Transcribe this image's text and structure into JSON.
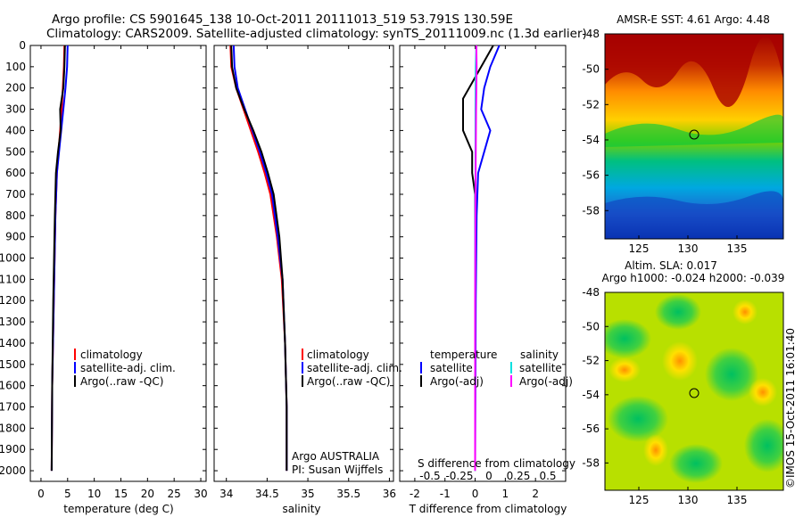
{
  "header": {
    "line1": "Argo profile: CS 5901645_138 10-Oct-2011 20111013_519 53.791S 130.59E",
    "line2": "Climatology: CARS2009. Satellite-adjusted climatology: synTS_20111009.nc (1.3d earlier)"
  },
  "colors": {
    "climatology": "#ff0000",
    "satellite": "#0000ff",
    "argo": "#000000",
    "satellite_salinity": "#00e0e0",
    "argo_salinity": "#ff00ff"
  },
  "depth_axis": {
    "range": [
      0,
      2050
    ],
    "ticks": [
      "0",
      "100",
      "200",
      "300",
      "400",
      "500",
      "600",
      "700",
      "800",
      "900",
      "1000",
      "1100",
      "1200",
      "1300",
      "1400",
      "1500",
      "1600",
      "1700",
      "1800",
      "1900",
      "2000"
    ]
  },
  "panel_temperature": {
    "xlabel": "temperature (deg C)",
    "xticks": [
      "0",
      "5",
      "10",
      "15",
      "20",
      "25",
      "30"
    ],
    "legend": [
      "climatology",
      "satellite-adj. clim.",
      "Argo(..raw -QC)"
    ]
  },
  "panel_salinity": {
    "xlabel": "salinity",
    "xticks": [
      "34",
      "34.5",
      "35",
      "35.5",
      "36"
    ],
    "legend": [
      "climatology",
      "satellite-adj. clim.",
      "Argo(..raw -QC)"
    ],
    "note1": "Argo AUSTRALIA",
    "note2": "PI: Susan Wijffels"
  },
  "panel_difference": {
    "xlabel": "T difference from climatology",
    "xticks": [
      "-2",
      "-1",
      "0",
      "1",
      "2"
    ],
    "top_label": "S difference from climatology",
    "top_ticks": [
      "-0.5",
      "-0.25",
      "0",
      "0.25",
      "0.5"
    ],
    "legend_t_title": "temperature",
    "legend_t": [
      "satellite",
      "Argo(-adj)"
    ],
    "legend_s_title": "salinity",
    "legend_s": [
      "satellite",
      "Argo(-adj)"
    ]
  },
  "map_sst": {
    "title": "AMSR-E SST: 4.61  Argo: 4.48",
    "yticks": [
      "-48",
      "-50",
      "-52",
      "-54",
      "-56",
      "-58"
    ],
    "xticks": [
      "125",
      "130",
      "135"
    ]
  },
  "map_sla": {
    "title1": "Altim. SLA: 0.017",
    "title2": "Argo h1000: -0.024 h2000: -0.039",
    "yticks": [
      "-48",
      "-50",
      "-52",
      "-54",
      "-56",
      "-58"
    ],
    "xticks": [
      "125",
      "130",
      "135"
    ]
  },
  "watermark": "©IMOS 15-Oct-2011 16:01:40",
  "chart_data": [
    {
      "type": "line",
      "xlabel": "temperature (deg C)",
      "ylabel": "",
      "xlim": [
        -2,
        31
      ],
      "ylim": [
        2050,
        0
      ],
      "series": [
        {
          "name": "climatology",
          "x": [
            4.4,
            4.3,
            4.1,
            3.9,
            3.6,
            3.3,
            3.0,
            2.7,
            2.4,
            2.1,
            2.0
          ],
          "y": [
            0,
            100,
            200,
            300,
            400,
            500,
            600,
            800,
            1200,
            1600,
            2000
          ]
        },
        {
          "name": "satellite-adj. clim.",
          "x": [
            5.0,
            4.9,
            4.6,
            4.2,
            3.8,
            3.4,
            3.0,
            2.7,
            2.4,
            2.1,
            2.0
          ],
          "y": [
            0,
            100,
            200,
            300,
            400,
            500,
            600,
            800,
            1200,
            1600,
            2000
          ]
        },
        {
          "name": "Argo(..raw -QC)",
          "x": [
            4.5,
            4.4,
            4.2,
            3.6,
            3.7,
            3.2,
            2.8,
            2.6,
            2.3,
            2.1,
            2.0
          ],
          "y": [
            0,
            100,
            200,
            300,
            400,
            500,
            600,
            800,
            1200,
            1600,
            2000
          ]
        }
      ]
    },
    {
      "type": "line",
      "xlabel": "salinity",
      "ylabel": "",
      "xlim": [
        33.85,
        36.05
      ],
      "ylim": [
        2050,
        0
      ],
      "series": [
        {
          "name": "climatology",
          "x": [
            34.05,
            34.06,
            34.12,
            34.21,
            34.3,
            34.39,
            34.47,
            34.54,
            34.62,
            34.68,
            34.72,
            34.74,
            34.74
          ],
          "y": [
            0,
            100,
            200,
            300,
            400,
            500,
            600,
            700,
            900,
            1100,
            1400,
            1700,
            2000
          ]
        },
        {
          "name": "satellite-adj. clim.",
          "x": [
            34.09,
            34.1,
            34.14,
            34.23,
            34.32,
            34.41,
            34.49,
            34.56,
            34.63,
            34.69,
            34.72,
            34.74,
            34.74
          ],
          "y": [
            0,
            100,
            200,
            300,
            400,
            500,
            600,
            700,
            900,
            1100,
            1400,
            1700,
            2000
          ]
        },
        {
          "name": "Argo(..raw -QC)",
          "x": [
            34.06,
            34.07,
            34.12,
            34.22,
            34.33,
            34.43,
            34.51,
            34.58,
            34.65,
            34.69,
            34.72,
            34.74,
            34.74
          ],
          "y": [
            0,
            100,
            200,
            300,
            400,
            500,
            600,
            700,
            900,
            1100,
            1400,
            1700,
            2000
          ]
        }
      ]
    },
    {
      "type": "line",
      "xlabel": "T difference from climatology",
      "x2label": "S difference from climatology",
      "xlim": [
        -2.5,
        3.0
      ],
      "ylim": [
        2050,
        0
      ],
      "series": [
        {
          "name": "temperature satellite",
          "x": [
            0.8,
            0.5,
            0.3,
            0.2,
            0.5,
            0.3,
            0.1,
            0.05,
            0.02,
            0.0
          ],
          "y": [
            0,
            100,
            200,
            300,
            400,
            500,
            600,
            800,
            1200,
            2000
          ]
        },
        {
          "name": "temperature Argo(-adj)",
          "x": [
            0.6,
            0.2,
            -0.4,
            -0.4,
            -0.1,
            -0.1,
            0.0,
            0.0,
            0.0,
            0.0
          ],
          "y": [
            0,
            100,
            250,
            400,
            500,
            600,
            700,
            900,
            1200,
            2000
          ]
        },
        {
          "name": "salinity satellite",
          "x": [
            0.04,
            0.02,
            0.01,
            0.01,
            0.0,
            0.0,
            0.0
          ],
          "y": [
            0,
            100,
            300,
            600,
            900,
            1400,
            2000
          ]
        },
        {
          "name": "salinity Argo(-adj)",
          "x": [
            0.04,
            0.05,
            0.03,
            0.01,
            0.0,
            0.0
          ],
          "y": [
            0,
            100,
            300,
            700,
            1200,
            2000
          ]
        }
      ]
    }
  ]
}
